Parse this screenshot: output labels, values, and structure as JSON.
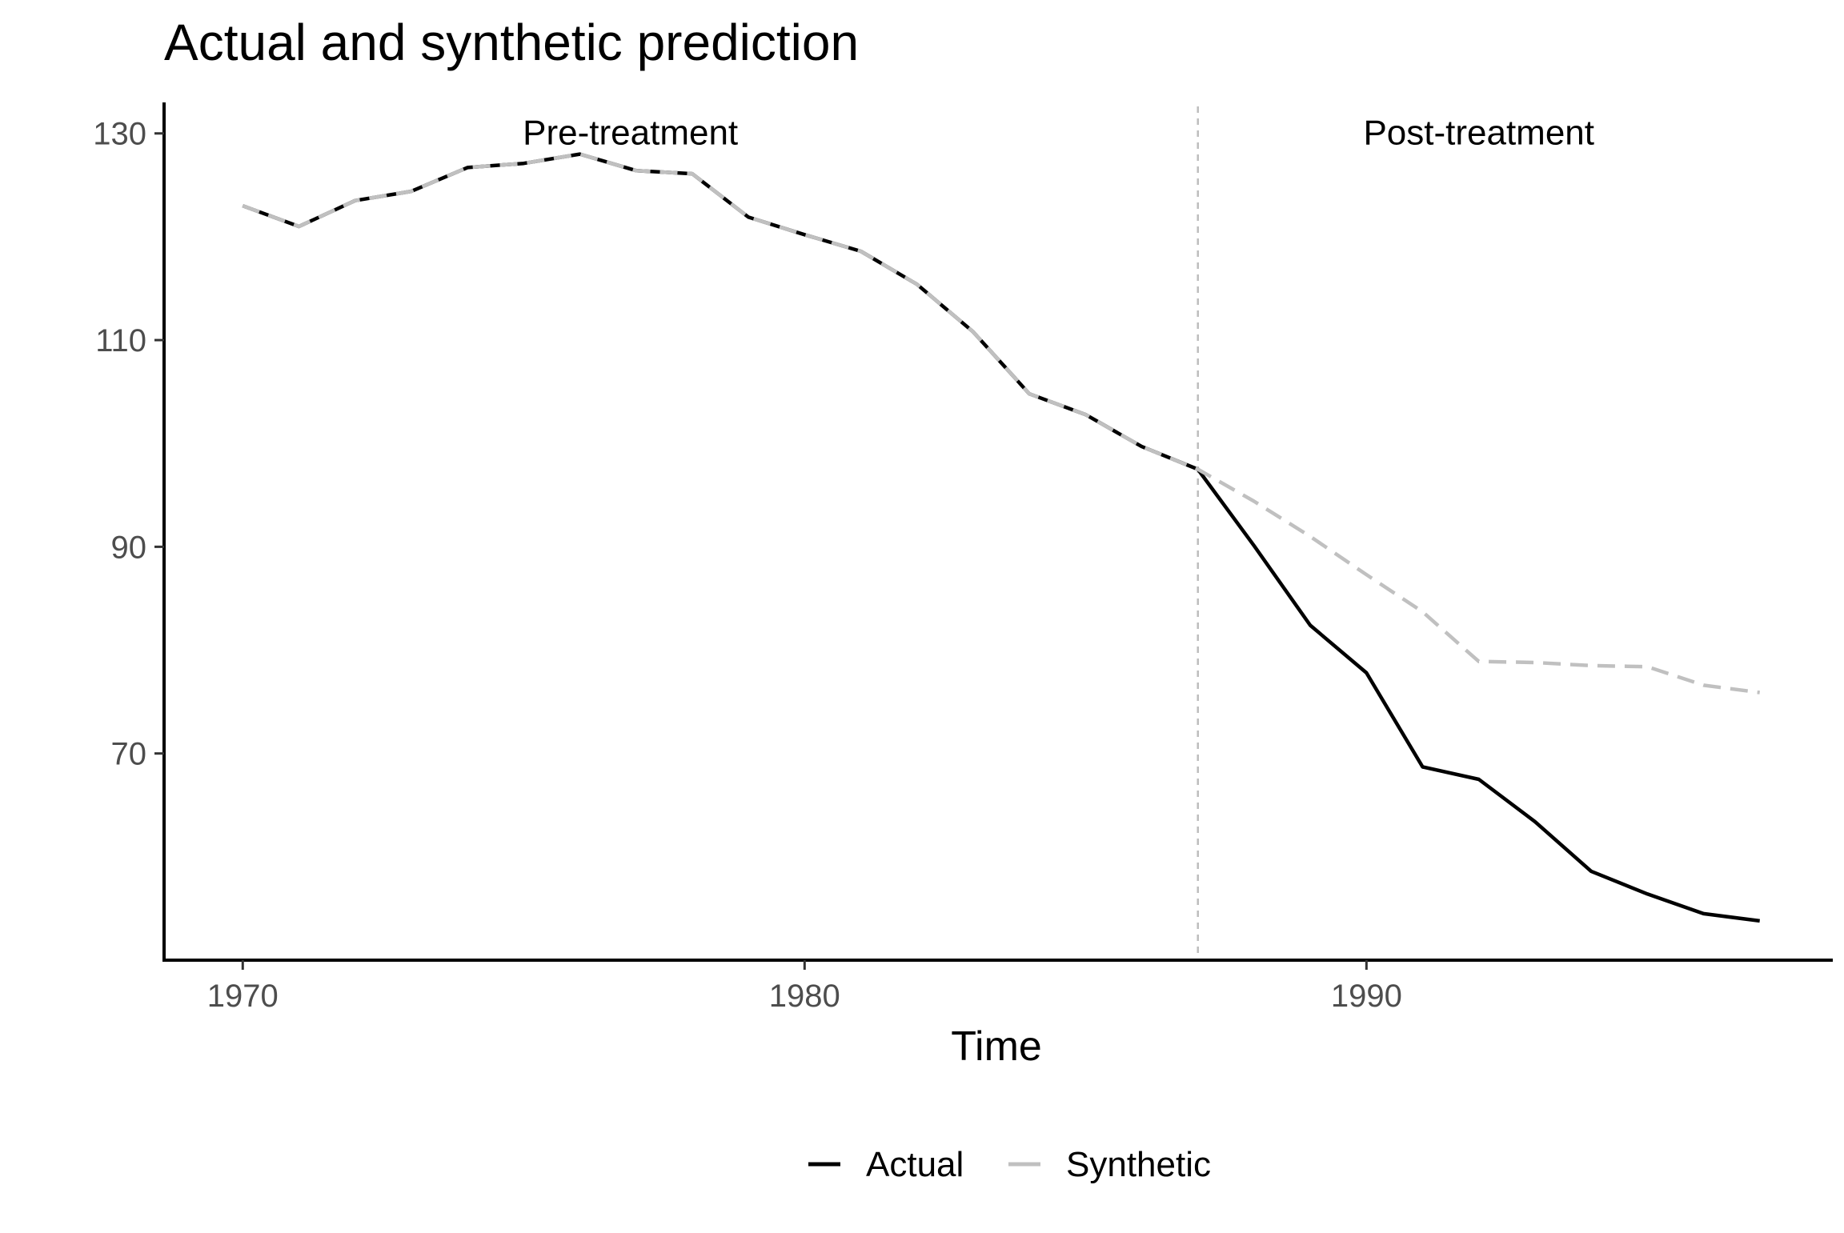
{
  "chart_data": {
    "type": "line",
    "title": "Actual and synthetic prediction",
    "xlabel": "Time",
    "ylabel": "",
    "xlim": [
      1968.6,
      1998.3
    ],
    "ylim": [
      50,
      133
    ],
    "x_ticks": [
      1970,
      1980,
      1990
    ],
    "y_ticks": [
      70,
      90,
      110,
      130
    ],
    "x_tick_labels": [
      "1970",
      "1980",
      "1990"
    ],
    "y_tick_labels": [
      "70",
      "90",
      "110",
      "130"
    ],
    "grid": false,
    "legend_position": "bottom",
    "treatment_year": 1987,
    "annotations": [
      {
        "text": "Pre-treatment",
        "x": 1976.9,
        "y": 130
      },
      {
        "text": "Post-treatment",
        "x": 1992.0,
        "y": 130
      }
    ],
    "x": [
      1970,
      1971,
      1972,
      1973,
      1974,
      1975,
      1976,
      1977,
      1978,
      1979,
      1980,
      1981,
      1982,
      1983,
      1984,
      1985,
      1986,
      1987,
      1988,
      1989,
      1990,
      1991,
      1992,
      1993,
      1994,
      1995,
      1996,
      1997
    ],
    "series": [
      {
        "name": "Actual",
        "color": "#000000",
        "dash": "solid",
        "values": [
          123.0,
          121.0,
          123.5,
          124.4,
          126.7,
          127.1,
          128.0,
          126.4,
          126.1,
          121.9,
          120.2,
          118.6,
          115.4,
          110.8,
          104.8,
          102.8,
          99.7,
          97.5,
          90.1,
          82.4,
          77.8,
          68.7,
          67.5,
          63.4,
          58.6,
          56.4,
          54.5,
          53.8
        ]
      },
      {
        "name": "Synthetic",
        "color": "#c0c0c0",
        "dash": "dashed",
        "values": [
          123.0,
          121.0,
          123.5,
          124.4,
          126.7,
          127.1,
          128.0,
          126.4,
          126.1,
          121.9,
          120.2,
          118.6,
          115.4,
          110.8,
          104.8,
          102.8,
          99.7,
          97.5,
          94.4,
          91.0,
          87.3,
          83.7,
          78.9,
          78.8,
          78.5,
          78.4,
          76.6,
          75.9
        ]
      }
    ]
  }
}
